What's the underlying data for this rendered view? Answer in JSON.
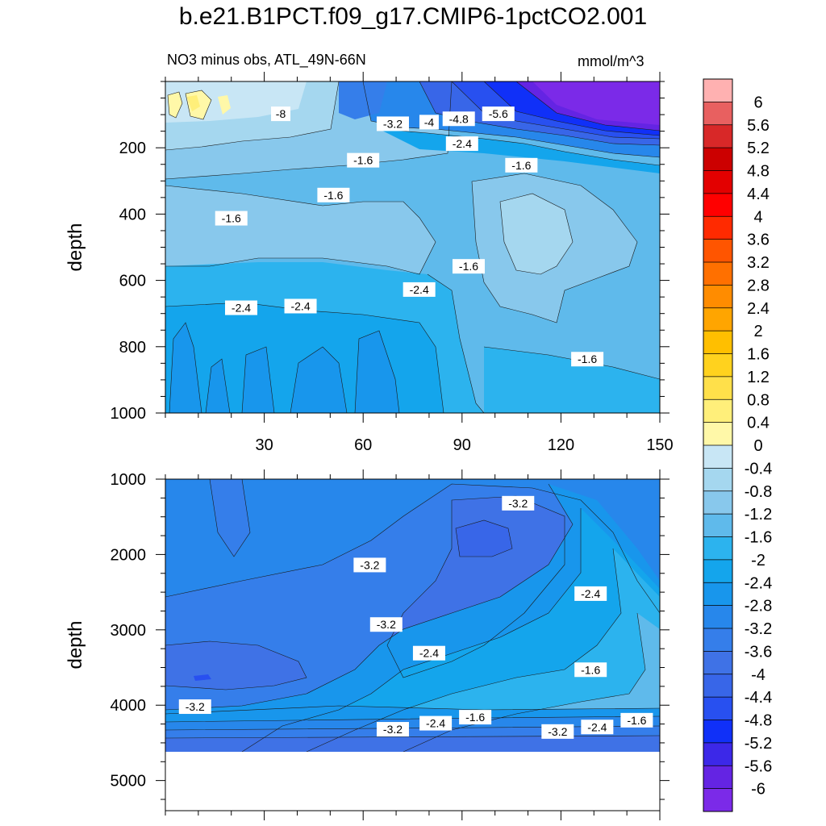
{
  "chart_data": {
    "type": "contour",
    "title": "b.e21.B1PCT.f09_g17.CMIP6-1pctCO2.001",
    "subtitle": "NO3 minus obs, ATL_49N-66N",
    "units": "mmol/m^3",
    "x_ticks": [
      30,
      60,
      90,
      120,
      150
    ],
    "xlim": [
      0,
      150
    ],
    "colorbar": {
      "levels": [
        "6",
        "5.6",
        "5.2",
        "4.8",
        "4.4",
        "4",
        "3.6",
        "3.2",
        "2.8",
        "2.4",
        "2",
        "1.6",
        "1.2",
        "0.8",
        "0.4",
        "0",
        "-0.4",
        "-0.8",
        "-1.2",
        "-1.6",
        "-2",
        "-2.4",
        "-2.8",
        "-3.2",
        "-3.6",
        "-4",
        "-4.4",
        "-4.8",
        "-5.2",
        "-5.6",
        "-6"
      ],
      "colors": [
        "#FFB1B1",
        "#E86060",
        "#D82828",
        "#CC0000",
        "#E30000",
        "#FF0000",
        "#FF2A00",
        "#FF5500",
        "#FF7000",
        "#FF8C00",
        "#FFA500",
        "#FFBF00",
        "#FFD21E",
        "#FFE04A",
        "#FFEF7A",
        "#FFF8A8",
        "#C8E6F5",
        "#A5D7EF",
        "#88C8EC",
        "#5FBAEB",
        "#2CB3EE",
        "#14A5EC",
        "#1896EC",
        "#2787EB",
        "#357EEA",
        "#3F72E6",
        "#3866E8",
        "#2850F0",
        "#1030F8",
        "#3C28E8",
        "#6424E3",
        "#7B2AE8"
      ]
    },
    "panels": [
      {
        "name": "top",
        "ylabel": "depth",
        "ylim": [
          0,
          1000
        ],
        "y_ticks": [
          200,
          400,
          600,
          800,
          1000
        ],
        "contour_labels": [
          {
            "text": "-8",
            "x": 35,
            "y": 100
          },
          {
            "text": "-3.2",
            "x": 69,
            "y": 130
          },
          {
            "text": "-4",
            "x": 80,
            "y": 125
          },
          {
            "text": "-4.8",
            "x": 89,
            "y": 115
          },
          {
            "text": "-5.6",
            "x": 101,
            "y": 100
          },
          {
            "text": "-2.4",
            "x": 90,
            "y": 190
          },
          {
            "text": "-1.6",
            "x": 60,
            "y": 240
          },
          {
            "text": "-1.6",
            "x": 108,
            "y": 255
          },
          {
            "text": "-1.6",
            "x": 51,
            "y": 345
          },
          {
            "text": "-1.6",
            "x": 20,
            "y": 415
          },
          {
            "text": "-1.6",
            "x": 92,
            "y": 560
          },
          {
            "text": "-2.4",
            "x": 77,
            "y": 630
          },
          {
            "text": "-2.4",
            "x": 23,
            "y": 685
          },
          {
            "text": "-2.4",
            "x": 41,
            "y": 680
          },
          {
            "text": "-1.6",
            "x": 128,
            "y": 840
          }
        ]
      },
      {
        "name": "bottom",
        "ylabel": "depth",
        "ylim": [
          1000,
          5400
        ],
        "y_ticks": [
          1000,
          2000,
          3000,
          4000,
          5000
        ],
        "data_max_depth": 4620,
        "contour_labels": [
          {
            "text": "-3.2",
            "x": 107,
            "y": 1330
          },
          {
            "text": "-3.2",
            "x": 62,
            "y": 2150
          },
          {
            "text": "-2.4",
            "x": 129,
            "y": 2530
          },
          {
            "text": "-3.2",
            "x": 67,
            "y": 2940
          },
          {
            "text": "-2.4",
            "x": 80,
            "y": 3320
          },
          {
            "text": "-1.6",
            "x": 129,
            "y": 3540
          },
          {
            "text": "-3.2",
            "x": 9,
            "y": 4030
          },
          {
            "text": "-1.6",
            "x": 94,
            "y": 4170
          },
          {
            "text": "-1.6",
            "x": 143,
            "y": 4210
          },
          {
            "text": "-2.4",
            "x": 82,
            "y": 4250
          },
          {
            "text": "-2.4",
            "x": 131,
            "y": 4300
          },
          {
            "text": "-3.2",
            "x": 69,
            "y": 4330
          },
          {
            "text": "-3.2",
            "x": 119,
            "y": 4360
          }
        ]
      }
    ]
  }
}
